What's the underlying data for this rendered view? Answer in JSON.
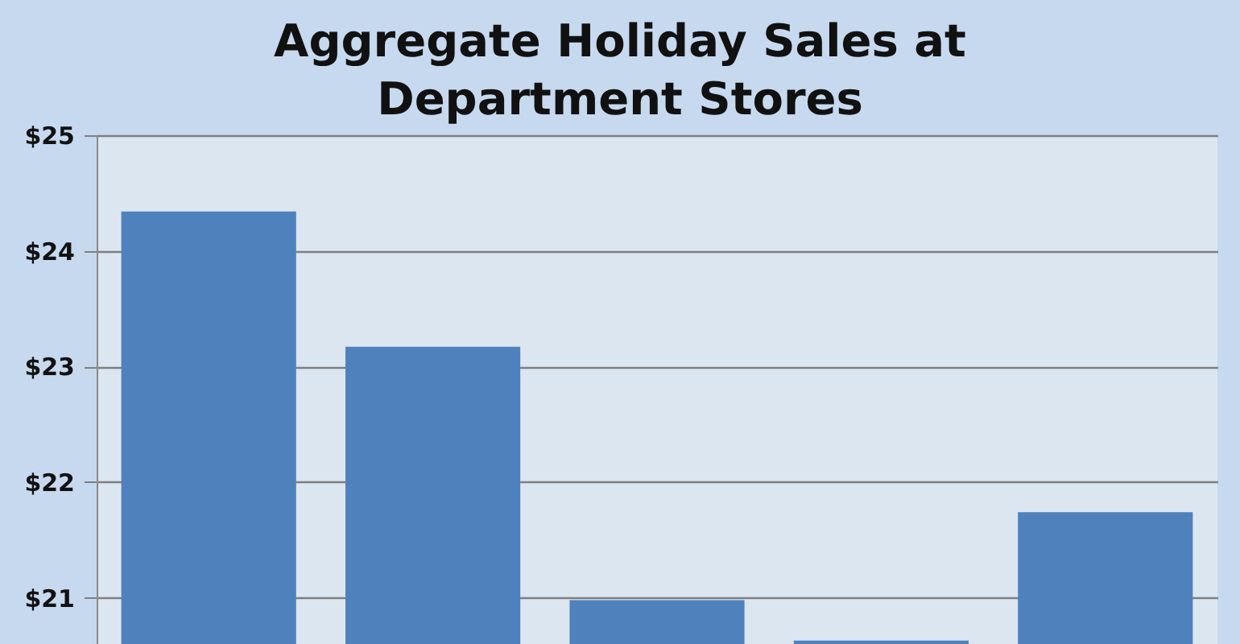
{
  "chart_data": {
    "type": "bar",
    "title": "Aggregate Holiday Sales at Department Stores",
    "categories": [
      null,
      null,
      null,
      null,
      null
    ],
    "values": [
      24.34,
      23.17,
      20.98,
      20.63,
      21.74
    ],
    "color": "#4f81bd",
    "ylim": [
      20.6,
      25
    ],
    "yticks": [
      {
        "value": 21,
        "label": "$21"
      },
      {
        "value": 22,
        "label": "$22"
      },
      {
        "value": 23,
        "label": "$23"
      },
      {
        "value": 24,
        "label": "$24"
      },
      {
        "value": 25,
        "label": "$25"
      }
    ],
    "grid": "y"
  }
}
